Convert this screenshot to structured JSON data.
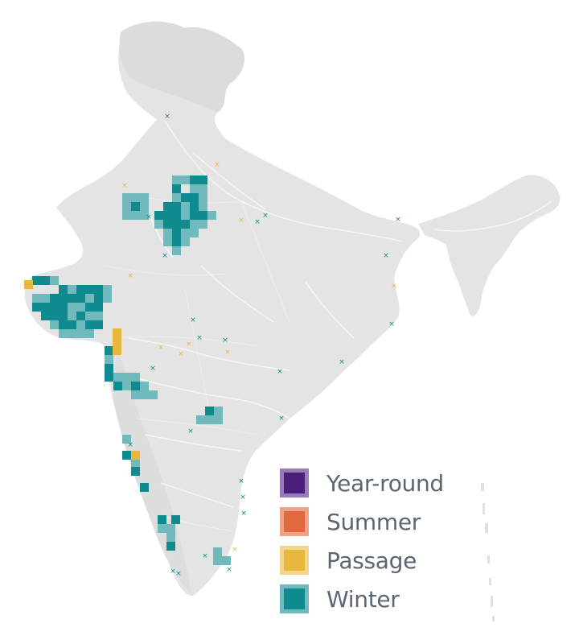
{
  "legend": {
    "items": [
      {
        "key": "year_round",
        "label": "Year-round",
        "fill": "#4a1f7a",
        "border": "#9a7bb8"
      },
      {
        "key": "summer",
        "label": "Summer",
        "fill": "#e0683e",
        "border": "#efa284"
      },
      {
        "key": "passage",
        "label": "Passage",
        "fill": "#e8b83c",
        "border": "#f3d58e"
      },
      {
        "key": "winter",
        "label": "Winter",
        "fill": "#0f8a8f",
        "border": "#70b9bc"
      }
    ]
  },
  "colors": {
    "land": "#e4e4e4",
    "land_highlands": "#d9d9d9",
    "rivers": "#f6f6f6",
    "winter_light": "#70b9bc",
    "winter_dark": "#0f8a8f",
    "passage": "#e8b83c"
  }
}
